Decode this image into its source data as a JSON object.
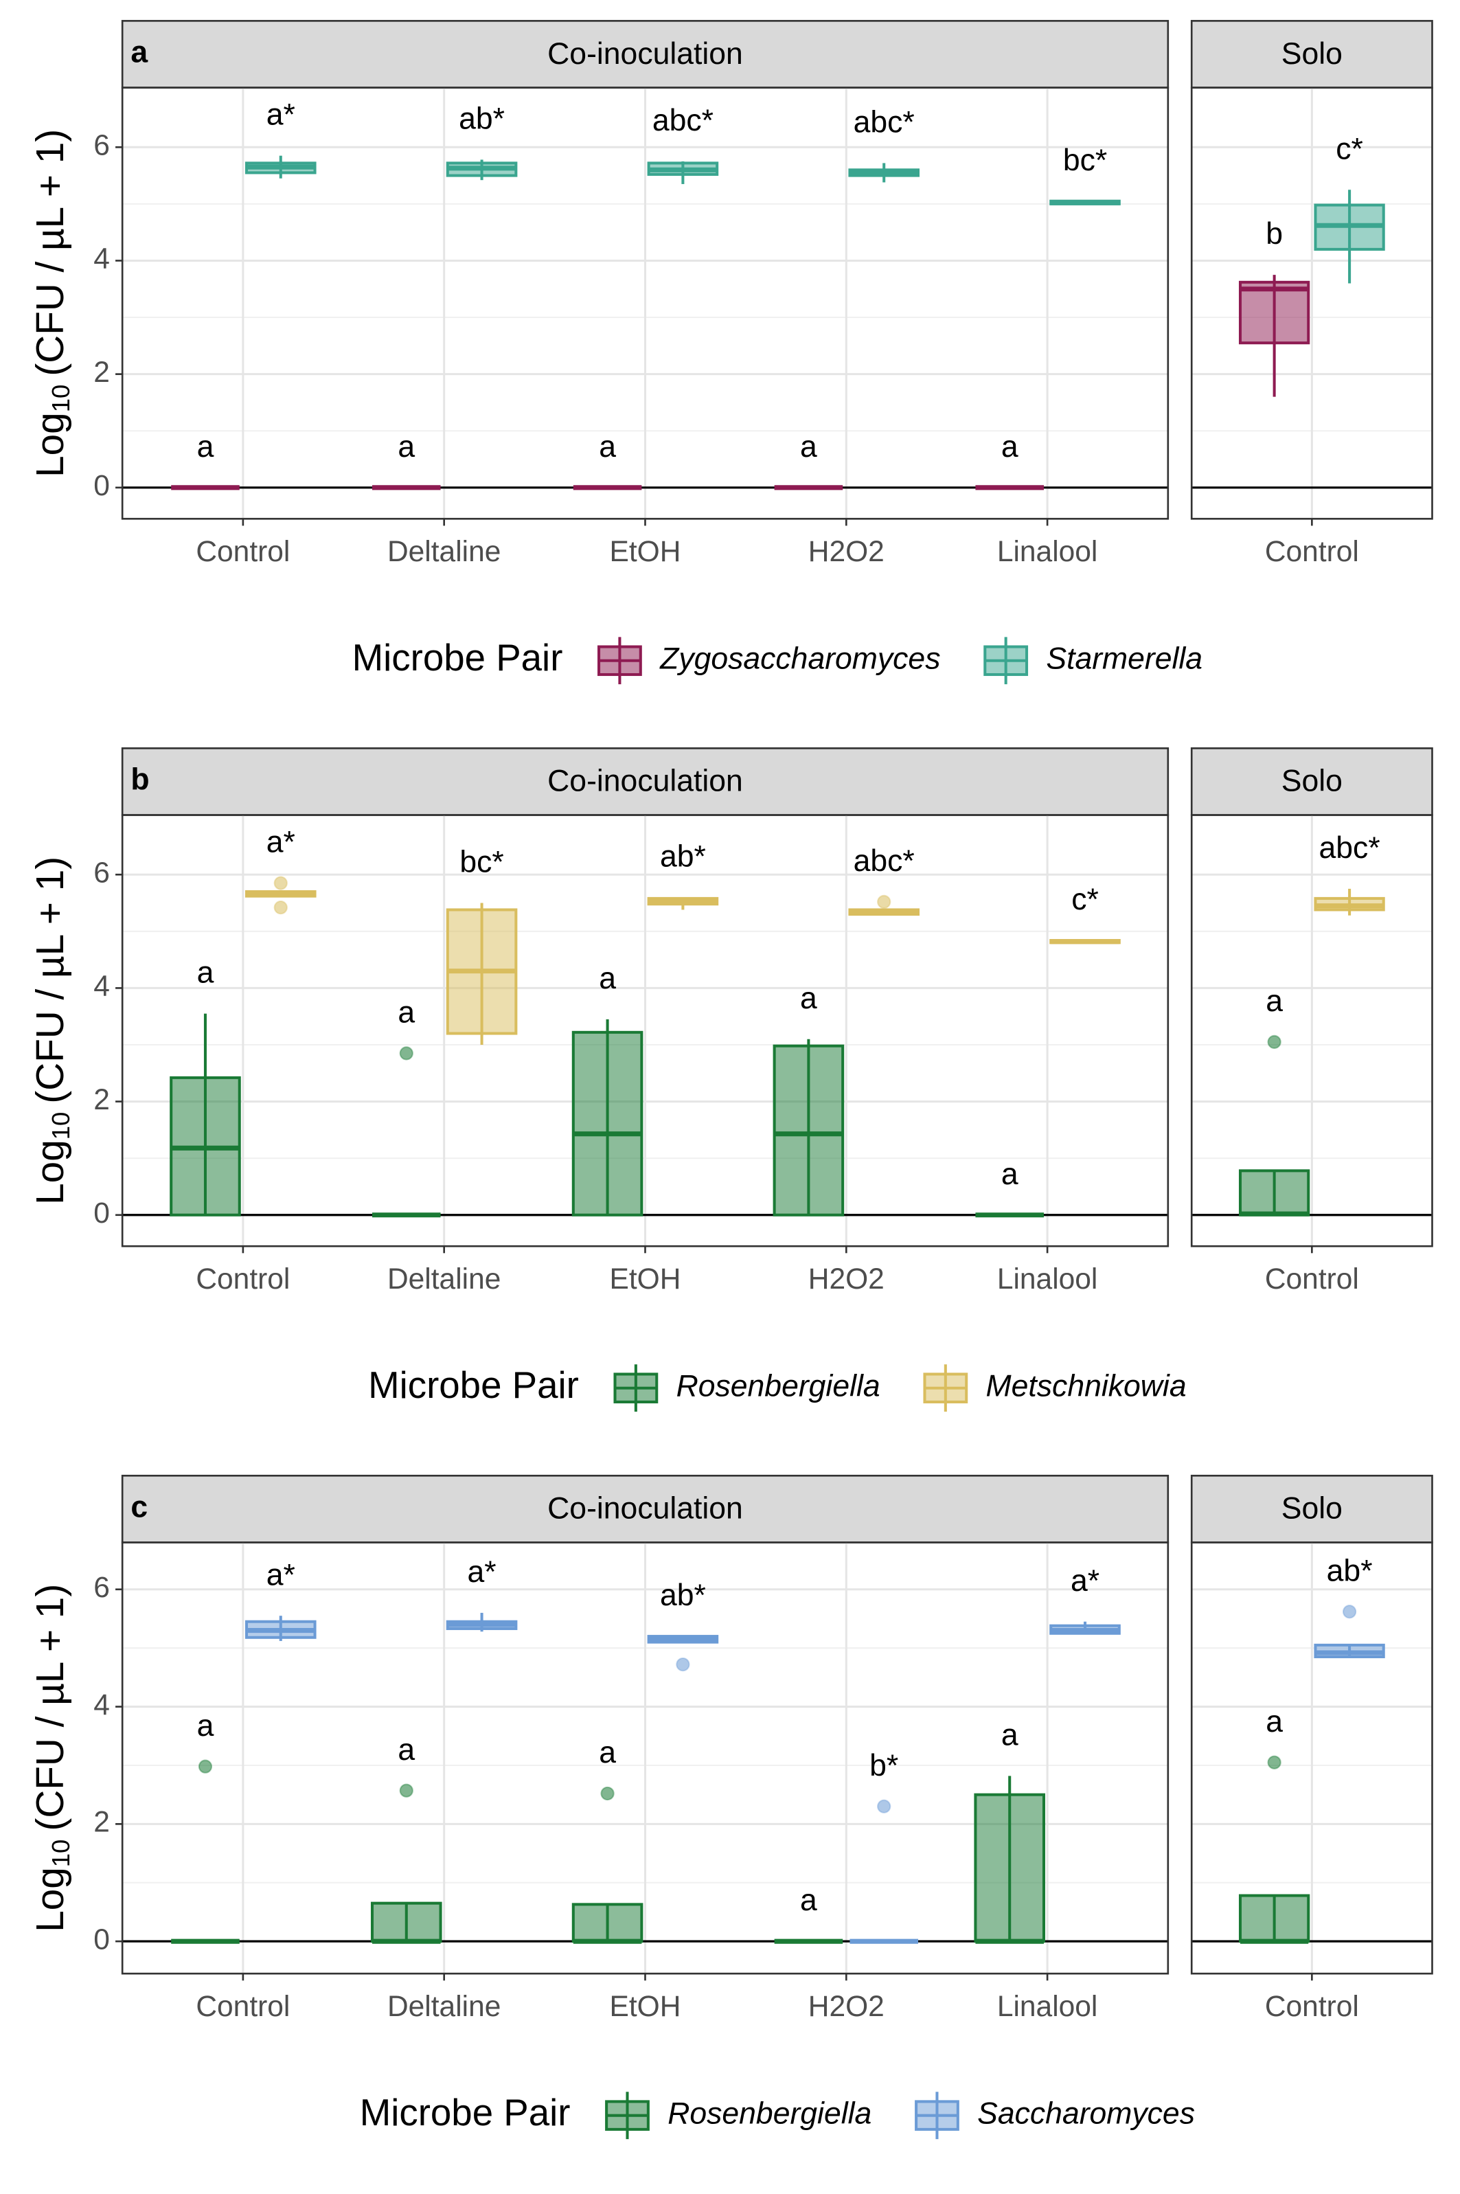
{
  "chart_data": [
    {
      "type": "box",
      "panel_label": "a",
      "y_label": {
        "base": "Log",
        "subscript": "10",
        "rest": "(CFU / µL + 1)"
      },
      "legend_title": "Microbe Pair",
      "series": [
        {
          "name": "Zygosaccharomyces",
          "color": "#8e1b52"
        },
        {
          "name": "Starmerella",
          "color": "#3aa58f"
        }
      ],
      "ylim": [
        -0.55,
        7.05
      ],
      "yticks": [
        0,
        2,
        4,
        6
      ],
      "y_minor_ticks": [
        1,
        3,
        5
      ],
      "grid": true,
      "hline": 0,
      "facets": [
        {
          "title": "Co-inoculation",
          "categories": [
            "Control",
            "Deltaline",
            "EtOH",
            "H2O2",
            "Linalool"
          ],
          "boxes": [
            [
              {
                "min": 0,
                "q1": 0,
                "median": 0,
                "q3": 0,
                "max": 0
              },
              {
                "min": 0,
                "q1": 0,
                "median": 0,
                "q3": 0,
                "max": 0
              },
              {
                "min": 0,
                "q1": 0,
                "median": 0,
                "q3": 0,
                "max": 0
              },
              {
                "min": 0,
                "q1": 0,
                "median": 0,
                "q3": 0,
                "max": 0
              },
              {
                "min": 0,
                "q1": 0,
                "median": 0,
                "q3": 0,
                "max": 0
              }
            ],
            [
              {
                "min": 5.45,
                "q1": 5.55,
                "median": 5.65,
                "q3": 5.72,
                "max": 5.85
              },
              {
                "min": 5.42,
                "q1": 5.5,
                "median": 5.63,
                "q3": 5.72,
                "max": 5.78
              },
              {
                "min": 5.35,
                "q1": 5.52,
                "median": 5.6,
                "q3": 5.72,
                "max": 5.75
              },
              {
                "min": 5.38,
                "q1": 5.5,
                "median": 5.55,
                "q3": 5.6,
                "max": 5.72
              },
              {
                "min": 5.0,
                "q1": 5.0,
                "median": 5.02,
                "q3": 5.05,
                "max": 5.05
              }
            ]
          ],
          "letters": [
            [
              "a",
              "a",
              "a",
              "a",
              "a"
            ],
            [
              "a*",
              "ab*",
              "abc*",
              "abc*",
              "bc*"
            ]
          ]
        },
        {
          "title": "Solo",
          "categories": [
            "Control"
          ],
          "boxes": [
            [
              {
                "min": 1.6,
                "q1": 2.55,
                "median": 3.5,
                "q3": 3.62,
                "max": 3.75
              }
            ],
            [
              {
                "min": 3.6,
                "q1": 4.2,
                "median": 4.62,
                "q3": 4.98,
                "max": 5.25
              }
            ]
          ],
          "letters": [
            [
              "b"
            ],
            [
              "c*"
            ]
          ]
        }
      ]
    },
    {
      "type": "box",
      "panel_label": "b",
      "y_label": {
        "base": "Log",
        "subscript": "10",
        "rest": "(CFU / µL + 1)"
      },
      "legend_title": "Microbe Pair",
      "series": [
        {
          "name": "Rosenbergiella",
          "color": "#1a7a35"
        },
        {
          "name": "Metschnikowia",
          "color": "#d9bd5e"
        }
      ],
      "ylim": [
        -0.55,
        7.05
      ],
      "yticks": [
        0,
        2,
        4,
        6
      ],
      "y_minor_ticks": [
        1,
        3,
        5
      ],
      "grid": true,
      "hline": 0,
      "facets": [
        {
          "title": "Co-inoculation",
          "categories": [
            "Control",
            "Deltaline",
            "EtOH",
            "H2O2",
            "Linalool"
          ],
          "boxes": [
            [
              {
                "min": 0,
                "q1": 0,
                "median": 1.18,
                "q3": 2.42,
                "max": 3.55
              },
              {
                "min": 0,
                "q1": 0,
                "median": 0,
                "q3": 0,
                "max": 0,
                "outliers": [
                  2.85
                ]
              },
              {
                "min": 0,
                "q1": 0,
                "median": 1.43,
                "q3": 3.22,
                "max": 3.45
              },
              {
                "min": 0,
                "q1": 0,
                "median": 1.43,
                "q3": 2.98,
                "max": 3.1
              },
              {
                "min": 0,
                "q1": 0,
                "median": 0,
                "q3": 0,
                "max": 0
              }
            ],
            [
              {
                "min": 5.62,
                "q1": 5.62,
                "median": 5.67,
                "q3": 5.7,
                "max": 5.7,
                "outliers": [
                  5.85,
                  5.42
                ]
              },
              {
                "min": 3.0,
                "q1": 3.2,
                "median": 4.3,
                "q3": 5.38,
                "max": 5.5
              },
              {
                "min": 5.38,
                "q1": 5.48,
                "median": 5.52,
                "q3": 5.58,
                "max": 5.6
              },
              {
                "min": 5.28,
                "q1": 5.3,
                "median": 5.35,
                "q3": 5.38,
                "max": 5.4,
                "outliers": [
                  5.52
                ]
              },
              {
                "min": 4.8,
                "q1": 4.8,
                "median": 4.82,
                "q3": 4.84,
                "max": 4.84
              }
            ]
          ],
          "letters": [
            [
              "a",
              "a",
              "a",
              "a",
              "a"
            ],
            [
              "a*",
              "bc*",
              "ab*",
              "abc*",
              "c*"
            ]
          ]
        },
        {
          "title": "Solo",
          "categories": [
            "Control"
          ],
          "boxes": [
            [
              {
                "min": 0,
                "q1": 0,
                "median": 0.02,
                "q3": 0.78,
                "max": 0.78,
                "outliers": [
                  3.05
                ]
              }
            ],
            [
              {
                "min": 5.28,
                "q1": 5.38,
                "median": 5.45,
                "q3": 5.58,
                "max": 5.75
              }
            ]
          ],
          "letters": [
            [
              "a"
            ],
            [
              "abc*"
            ]
          ]
        }
      ]
    },
    {
      "type": "box",
      "panel_label": "c",
      "y_label": {
        "base": "Log",
        "subscript": "10",
        "rest": "(CFU / µL + 1)"
      },
      "legend_title": "Microbe Pair",
      "series": [
        {
          "name": "Rosenbergiella",
          "color": "#1a7a35"
        },
        {
          "name": "Saccharomyces",
          "color": "#6b9bd6"
        }
      ],
      "ylim": [
        -0.55,
        6.8
      ],
      "yticks": [
        0,
        2,
        4,
        6
      ],
      "y_minor_ticks": [
        1,
        3,
        5
      ],
      "grid": true,
      "hline": 0,
      "facets": [
        {
          "title": "Co-inoculation",
          "categories": [
            "Control",
            "Deltaline",
            "EtOH",
            "H2O2",
            "Linalool"
          ],
          "boxes": [
            [
              {
                "min": 0,
                "q1": 0,
                "median": 0,
                "q3": 0,
                "max": 0,
                "outliers": [
                  2.98
                ]
              },
              {
                "min": 0,
                "q1": 0,
                "median": 0,
                "q3": 0.65,
                "max": 0.65,
                "outliers": [
                  2.57
                ]
              },
              {
                "min": 0,
                "q1": 0,
                "median": 0,
                "q3": 0.63,
                "max": 0.63,
                "outliers": [
                  2.52
                ]
              },
              {
                "min": 0,
                "q1": 0,
                "median": 0,
                "q3": 0,
                "max": 0
              },
              {
                "min": 0,
                "q1": 0,
                "median": 0,
                "q3": 2.5,
                "max": 2.82
              }
            ],
            [
              {
                "min": 5.12,
                "q1": 5.18,
                "median": 5.3,
                "q3": 5.45,
                "max": 5.55
              },
              {
                "min": 5.28,
                "q1": 5.33,
                "median": 5.4,
                "q3": 5.45,
                "max": 5.6
              },
              {
                "min": 5.08,
                "q1": 5.1,
                "median": 5.15,
                "q3": 5.2,
                "max": 5.2,
                "outliers": [
                  4.72
                ]
              },
              {
                "min": 0,
                "q1": 0,
                "median": 0,
                "q3": 0,
                "max": 0,
                "outliers": [
                  2.3
                ]
              },
              {
                "min": 5.25,
                "q1": 5.25,
                "median": 5.3,
                "q3": 5.38,
                "max": 5.45
              }
            ]
          ],
          "letters": [
            [
              "a",
              "a",
              "a",
              "a",
              "a"
            ],
            [
              "a*",
              "a*",
              "ab*",
              "b*",
              "a*"
            ]
          ]
        },
        {
          "title": "Solo",
          "categories": [
            "Control"
          ],
          "boxes": [
            [
              {
                "min": 0,
                "q1": 0,
                "median": 0,
                "q3": 0.78,
                "max": 0.78,
                "outliers": [
                  3.05
                ]
              }
            ],
            [
              {
                "min": 4.85,
                "q1": 4.85,
                "median": 4.92,
                "q3": 5.05,
                "max": 5.05,
                "outliers": [
                  5.62
                ]
              }
            ]
          ],
          "letters": [
            [
              "a"
            ],
            [
              "ab*"
            ]
          ]
        }
      ]
    }
  ]
}
